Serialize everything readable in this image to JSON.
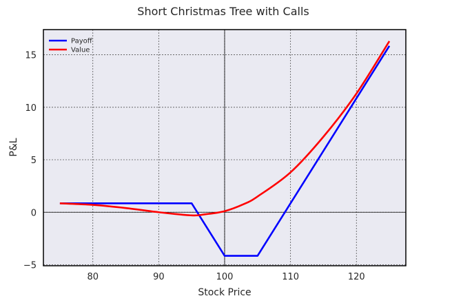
{
  "chart_data": {
    "type": "line",
    "title": "Short Christmas Tree with Calls",
    "xlabel": "Stock Price",
    "ylabel": "P&L",
    "xlim": [
      72.5,
      127.5
    ],
    "ylim": [
      -5.1,
      17.4
    ],
    "xticks": [
      80,
      90,
      100,
      110,
      120
    ],
    "yticks": [
      -5,
      0,
      5,
      10,
      15
    ],
    "ytick_labels": [
      "−5",
      "0",
      "5",
      "10",
      "15"
    ],
    "grid": true,
    "legend_position": "top-left",
    "series": [
      {
        "name": "Payoff",
        "color": "#0000ff",
        "x": [
          75,
          95,
          100,
          105,
          125
        ],
        "y": [
          0.85,
          0.85,
          -4.15,
          -4.15,
          15.85
        ]
      },
      {
        "name": "Value",
        "color": "#ff0000",
        "x": [
          75,
          80,
          85,
          90,
          95,
          97,
          100,
          103,
          105,
          110,
          115,
          120,
          125
        ],
        "y": [
          0.85,
          0.7,
          0.4,
          0.0,
          -0.3,
          -0.2,
          0.1,
          0.8,
          1.5,
          3.8,
          7.2,
          11.3,
          16.3
        ]
      }
    ]
  }
}
